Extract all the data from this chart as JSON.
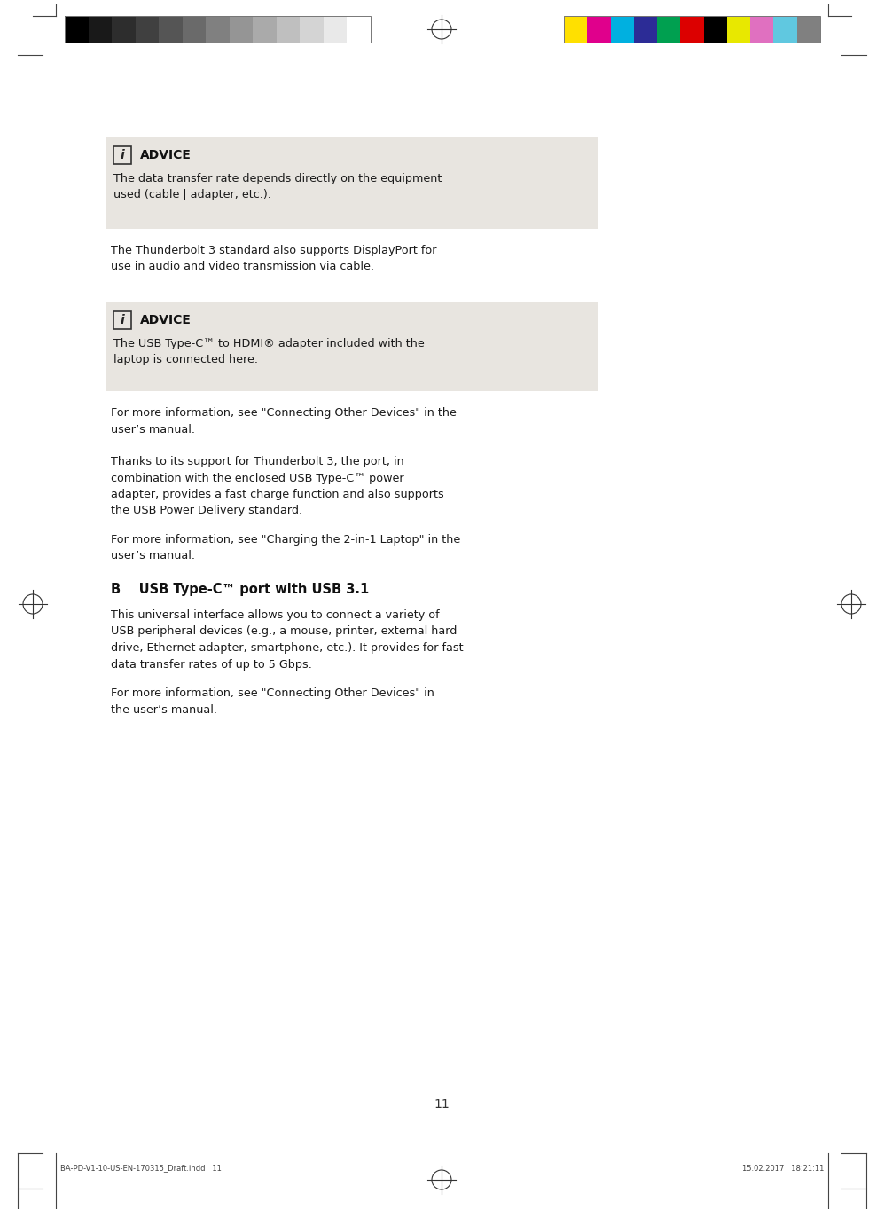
{
  "bg_color": "#ffffff",
  "advice_bg": "#e8e5e0",
  "text_color": "#1a1a1a",
  "gray_bar_colors": [
    "#000000",
    "#191919",
    "#2d2d2d",
    "#404040",
    "#555555",
    "#6a6a6a",
    "#808080",
    "#959595",
    "#aaaaaa",
    "#bfbfbf",
    "#d4d4d4",
    "#e9e9e9",
    "#ffffff"
  ],
  "color_bar_colors": [
    "#ffe000",
    "#e0008c",
    "#00b0e0",
    "#2c2c96",
    "#00a050",
    "#dc0000",
    "#000000",
    "#e8e800",
    "#e070c0",
    "#60c8e0",
    "#808080"
  ],
  "advice1_title": "ADVICE",
  "advice1_body": "The data transfer rate depends directly on the equipment\nused (cable | adapter, etc.).",
  "text1": "The Thunderbolt 3 standard also supports DisplayPort for\nuse in audio and video transmission via cable.",
  "advice2_title": "ADVICE",
  "advice2_body": "The USB Type-C™ to HDMI® adapter included with the\nlaptop is connected here.",
  "text2": "For more information, see \"Connecting Other Devices\" in the\nuser’s manual.",
  "text3": "Thanks to its support for Thunderbolt 3, the port, in\ncombination with the enclosed USB Type-C™ power\nadapter, provides a fast charge function and also supports\nthe USB Power Delivery standard.",
  "text4": "For more information, see \"Charging the 2-in-1 Laptop\" in the\nuser’s manual.",
  "section_b_title": "B    USB Type-C™ port with USB 3.1",
  "text5": "This universal interface allows you to connect a variety of\nUSB peripheral devices (e.g., a mouse, printer, external hard\ndrive, Ethernet adapter, smartphone, etc.). It provides for fast\ndata transfer rates of up to 5 Gbps.",
  "text6": "For more information, see \"Connecting Other Devices\" in\nthe user’s manual.",
  "page_number": "11",
  "footer_left": "BA-PD-V1-10-US-EN-170315_Draft.indd   11",
  "footer_right": "15.02.2017   18:21:11"
}
